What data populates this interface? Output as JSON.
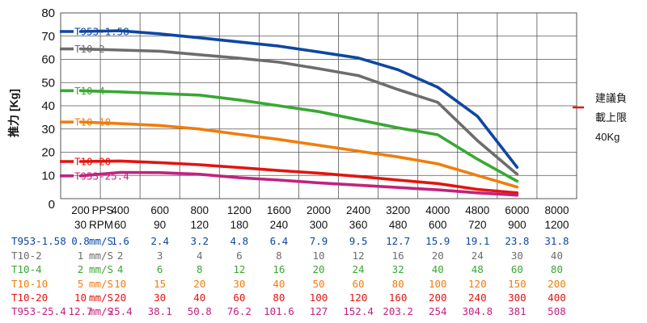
{
  "chart_data": {
    "type": "line",
    "title": "",
    "ylabel": "推力 [Kg]",
    "ylim": [
      0,
      80
    ],
    "yticks": [
      0,
      10,
      20,
      30,
      40,
      50,
      60,
      70,
      80
    ],
    "grid": true,
    "legend_placement": "left, inside plot",
    "x_label_pps": "PPS",
    "x_label_rpm": "RPM",
    "pps": [
      "200",
      "400",
      "600",
      "800",
      "1200",
      "1600",
      "2000",
      "2400",
      "3200",
      "4000",
      "4800",
      "6000",
      "8000"
    ],
    "rpm": [
      "30",
      "60",
      "90",
      "120",
      "180",
      "240",
      "300",
      "360",
      "480",
      "600",
      "720",
      "900",
      "1200"
    ],
    "series": [
      {
        "name": "T953-1.58",
        "color": "#0d47a1",
        "table_label": "T953-1.58",
        "unit": "mm/S",
        "values": [
          72,
          72.3,
          71,
          69.3,
          67.5,
          65.7,
          63.2,
          60.6,
          55.5,
          48,
          35.5,
          13.5,
          null
        ],
        "speeds": [
          "0.8",
          "1.6",
          "2.4",
          "3.2",
          "4.8",
          "6.4",
          "7.9",
          "9.5",
          "12.7",
          "15.9",
          "19.1",
          "23.8",
          "31.8"
        ]
      },
      {
        "name": "T10-2",
        "color": "#6d6d6d",
        "table_label": "T10-2",
        "unit": "mm/S",
        "values": [
          64.5,
          64,
          63.5,
          62,
          60.5,
          58.8,
          56,
          53,
          47,
          41.5,
          25,
          10.5,
          null
        ],
        "speeds": [
          "1",
          "2",
          "3",
          "4",
          "6",
          "8",
          "10",
          "12",
          "16",
          "20",
          "24",
          "30",
          "40"
        ]
      },
      {
        "name": "T10-4",
        "color": "#38a832",
        "table_label": "T10-4",
        "unit": "mm/S",
        "values": [
          46.5,
          46,
          45.3,
          44.6,
          42.5,
          40,
          37.5,
          34,
          30.5,
          27.5,
          17,
          7.5,
          null
        ],
        "speeds": [
          "2",
          "4",
          "6",
          "8",
          "12",
          "16",
          "20",
          "24",
          "32",
          "40",
          "48",
          "60",
          "80"
        ]
      },
      {
        "name": "T10-10",
        "color": "#f07d0c",
        "table_label": "T10-10",
        "unit": "mm/S",
        "values": [
          33,
          32.3,
          31.5,
          30,
          27.7,
          25.5,
          23,
          20.5,
          18,
          15,
          10,
          5,
          null
        ],
        "speeds": [
          "5",
          "10",
          "15",
          "20",
          "30",
          "40",
          "50",
          "60",
          "80",
          "100",
          "120",
          "150",
          "200"
        ]
      },
      {
        "name": "T10-20",
        "color": "#e3140f",
        "table_label": "T10-20",
        "unit": "mm/S",
        "values": [
          16,
          16.2,
          15.5,
          14.6,
          13.4,
          12.1,
          11,
          9.6,
          8,
          6.5,
          4,
          2.5,
          null
        ],
        "speeds": [
          "10",
          "20",
          "30",
          "40",
          "60",
          "80",
          "100",
          "120",
          "160",
          "200",
          "240",
          "300",
          "400"
        ]
      },
      {
        "name": "T953-25.4",
        "color": "#c2227f",
        "table_label": "T953-25.4",
        "unit": "mm/S",
        "values": [
          9.8,
          11.3,
          11.2,
          10.5,
          9,
          8,
          6.8,
          5.8,
          4.8,
          3.8,
          2.5,
          1.5,
          null
        ],
        "speeds": [
          "12.7",
          "25.4",
          "38.1",
          "50.8",
          "76.2",
          "101.6",
          "127",
          "152.4",
          "203.2",
          "254",
          "304.8",
          "381",
          "508"
        ]
      }
    ],
    "annotation": {
      "lines": [
        "建議負",
        "載上限",
        "40Kg"
      ],
      "color": "#e3140f"
    }
  }
}
